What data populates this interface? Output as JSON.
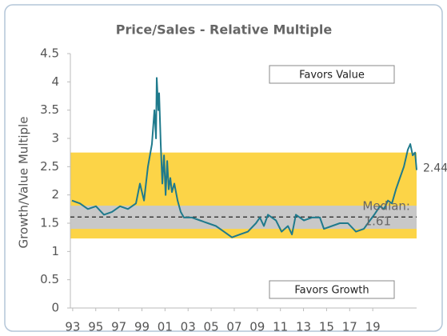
{
  "chart_data": {
    "type": "line",
    "title": "Price/Sales - Relative Multiple",
    "y_label": "Growth/Value Multiple",
    "x": [
      1992.94,
      1993.63,
      1994.32,
      1995.02,
      1995.71,
      1996.4,
      1997.1,
      1997.79,
      1998.48,
      1998.83,
      1999.18,
      1999.52,
      1999.87,
      2000.08,
      2000.22,
      2000.28,
      2000.42,
      2000.49,
      2000.63,
      2000.77,
      2000.91,
      2001.05,
      2001.19,
      2001.32,
      2001.46,
      2001.6,
      2001.81,
      2002.09,
      2002.36,
      2002.64,
      2003.33,
      2004.03,
      2004.72,
      2005.41,
      2006.11,
      2006.8,
      2007.49,
      2008.18,
      2008.88,
      2009.22,
      2009.57,
      2009.92,
      2010.61,
      2011.1,
      2011.65,
      2012.0,
      2012.34,
      2013.04,
      2013.73,
      2014.42,
      2014.77,
      2015.46,
      2016.15,
      2016.85,
      2017.54,
      2018.23,
      2018.58,
      2019.13,
      2019.62,
      2019.97,
      2020.31,
      2020.66,
      2021.01,
      2021.35,
      2021.7,
      2022.04,
      2022.25,
      2022.46,
      2022.67,
      2022.8
    ],
    "series": [
      {
        "name": "Price/Sales",
        "color": "#1f7a8c",
        "values": [
          1.9,
          1.85,
          1.75,
          1.8,
          1.65,
          1.7,
          1.8,
          1.75,
          1.85,
          2.2,
          1.9,
          2.5,
          2.9,
          3.5,
          3.0,
          4.07,
          3.5,
          3.8,
          2.9,
          2.2,
          2.7,
          2.0,
          2.6,
          2.1,
          2.3,
          2.05,
          2.2,
          1.9,
          1.7,
          1.6,
          1.6,
          1.55,
          1.5,
          1.45,
          1.35,
          1.25,
          1.3,
          1.35,
          1.5,
          1.6,
          1.45,
          1.65,
          1.55,
          1.35,
          1.45,
          1.3,
          1.65,
          1.55,
          1.6,
          1.6,
          1.4,
          1.45,
          1.5,
          1.5,
          1.35,
          1.4,
          1.5,
          1.65,
          1.8,
          1.75,
          1.9,
          1.85,
          2.1,
          2.3,
          2.5,
          2.8,
          2.9,
          2.7,
          2.75,
          2.44
        ]
      }
    ],
    "bands": [
      {
        "range": [
          1.23,
          2.75
        ],
        "color": "#fcd447"
      },
      {
        "range": [
          1.4,
          1.81
        ],
        "color": "#c8c8c8"
      }
    ],
    "median": 1.61,
    "median_label": "Median:",
    "annotations": [
      "Favors Value",
      "Favors Growth"
    ],
    "xlim": [
      1992.8,
      2022.8
    ],
    "xticks": [
      {
        "value": 1993,
        "label": "93"
      },
      {
        "value": 1995,
        "label": "95"
      },
      {
        "value": 1997,
        "label": "97"
      },
      {
        "value": 1999,
        "label": "99"
      },
      {
        "value": 2001,
        "label": "01"
      },
      {
        "value": 2003,
        "label": "03"
      },
      {
        "value": 2005,
        "label": "05"
      },
      {
        "value": 2007,
        "label": "07"
      },
      {
        "value": 2009,
        "label": "09"
      },
      {
        "value": 2011,
        "label": "11"
      },
      {
        "value": 2013,
        "label": "13"
      },
      {
        "value": 2015,
        "label": "15"
      },
      {
        "value": 2017,
        "label": "17"
      },
      {
        "value": 2019,
        "label": "19"
      }
    ],
    "ylim": [
      0,
      4.5
    ],
    "yticks": [
      0,
      0.5,
      1,
      1.5,
      2,
      2.5,
      3,
      3.5,
      4,
      4.5
    ],
    "grid": false
  }
}
